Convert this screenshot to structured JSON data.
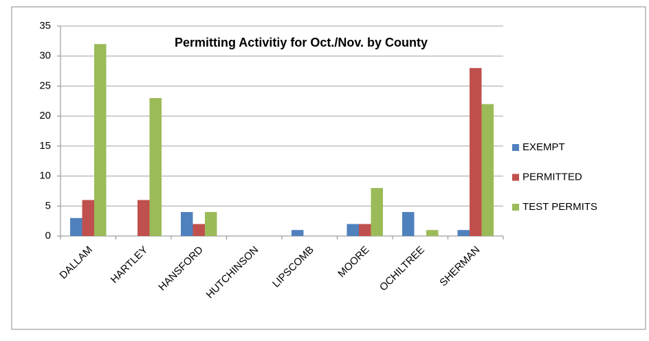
{
  "chart_data": {
    "type": "bar",
    "title": "Permitting Activitiy for Oct./Nov. by County",
    "categories": [
      "DALLAM",
      "HARTLEY",
      "HANSFORD",
      "HUTCHINSON",
      "LIPSCOMB",
      "MOORE",
      "OCHILTREE",
      "SHERMAN"
    ],
    "series": [
      {
        "name": "EXEMPT",
        "color": "#4f81bd",
        "values": [
          3,
          0,
          4,
          0,
          1,
          2,
          4,
          1
        ]
      },
      {
        "name": "PERMITTED",
        "color": "#c0504d",
        "values": [
          6,
          6,
          2,
          0,
          0,
          2,
          0,
          28
        ]
      },
      {
        "name": "TEST PERMITS",
        "color": "#9bbb59",
        "values": [
          32,
          23,
          4,
          0,
          0,
          8,
          1,
          22
        ]
      }
    ],
    "ylim": [
      0,
      35
    ],
    "yticks": [
      0,
      5,
      10,
      15,
      20,
      25,
      30,
      35
    ],
    "grid": true,
    "legend": "right"
  }
}
